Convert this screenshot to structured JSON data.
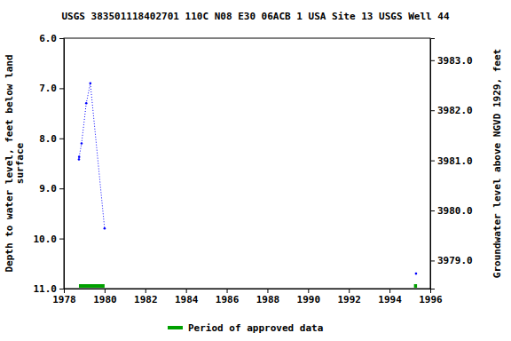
{
  "chart_data": {
    "type": "line",
    "title": "USGS 383501118402701 110C N08 E30 06ACB 1    USA Site 13 USGS Well 44",
    "y_label": [
      "Depth to water level, feet below land",
      "surface"
    ],
    "y2_label": "Groundwater level above NGVD 1929, feet",
    "xlim": [
      1978,
      1996
    ],
    "xticks": [
      1978,
      1980,
      1982,
      1984,
      1986,
      1988,
      1990,
      1992,
      1994,
      1996
    ],
    "ylim": [
      11,
      6
    ],
    "yticks": [
      {
        "value": 6,
        "label": "6.0"
      },
      {
        "value": 7,
        "label": "7.0"
      },
      {
        "value": 8,
        "label": "8.0"
      },
      {
        "value": 9,
        "label": "9.0"
      },
      {
        "value": 10,
        "label": "10.0"
      },
      {
        "value": 11,
        "label": "11.0"
      }
    ],
    "y2lim": [
      3978.44,
      3983.44
    ],
    "y2ticks": [
      {
        "value": 3979,
        "label": "3979.0"
      },
      {
        "value": 3980,
        "label": "3980.0"
      },
      {
        "value": 3981,
        "label": "3981.0"
      },
      {
        "value": 3982,
        "label": "3982.0"
      },
      {
        "value": 3983,
        "label": "3983.0"
      }
    ],
    "series": [
      {
        "color": "#0000ff",
        "marker": "point",
        "line_style": "dotted",
        "x": [
          1978.74,
          1978.75,
          1978.87,
          1979.1,
          1979.3,
          1980.0,
          1995.3
        ],
        "values": [
          8.42,
          8.37,
          8.1,
          7.3,
          6.9,
          9.8,
          null
        ]
      },
      {
        "color": "#0000ff",
        "marker": "point",
        "line_style": "dotted",
        "x": [
          1995.3
        ],
        "values": [
          10.7
        ]
      },
      {
        "name": "Period of approved data",
        "type": "period",
        "color": "#00a000",
        "periods": [
          [
            1978.74,
            1980.0
          ],
          [
            1995.2,
            1995.35
          ]
        ]
      }
    ],
    "legend": "bottom"
  }
}
